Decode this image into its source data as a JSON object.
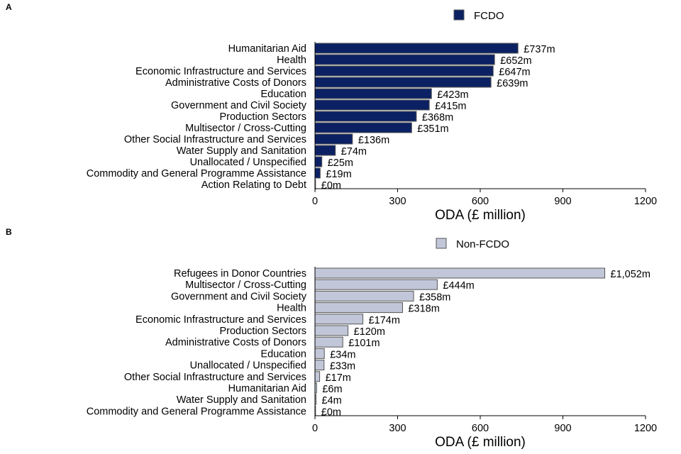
{
  "chart_data": [
    {
      "type": "bar",
      "orientation": "horizontal",
      "panel_label": "A",
      "legend": "FCDO",
      "legend_position": "top-right",
      "color": "#0b2163",
      "categories": [
        "Humanitarian Aid",
        "Health",
        "Economic Infrastructure and Services",
        "Administrative Costs of Donors",
        "Education",
        "Government and Civil Society",
        "Production Sectors",
        "Multisector / Cross-Cutting",
        "Other Social Infrastructure and Services",
        "Water Supply and Sanitation",
        "Unallocated / Unspecified",
        "Commodity and General Programme Assistance",
        "Action Relating to Debt"
      ],
      "values": [
        737,
        652,
        647,
        639,
        423,
        415,
        368,
        351,
        136,
        74,
        25,
        19,
        0
      ],
      "data_labels": [
        "£737m",
        "£652m",
        "£647m",
        "£639m",
        "£423m",
        "£415m",
        "£368m",
        "£351m",
        "£136m",
        "£74m",
        "£25m",
        "£19m",
        "£0m"
      ],
      "xlabel": "ODA (£ million)",
      "xlim": [
        0,
        1200
      ],
      "xticks": [
        "0",
        "300",
        "600",
        "900",
        "1200"
      ],
      "grid": false
    },
    {
      "type": "bar",
      "orientation": "horizontal",
      "panel_label": "B",
      "legend": "Non-FCDO",
      "legend_position": "top-right",
      "color": "#c1c7d8",
      "categories": [
        "Refugees in Donor Countries",
        "Multisector / Cross-Cutting",
        "Government and Civil Society",
        "Health",
        "Economic Infrastructure and Services",
        "Production Sectors",
        "Administrative Costs of Donors",
        "Education",
        "Unallocated / Unspecified",
        "Other Social Infrastructure and Services",
        "Humanitarian Aid",
        "Water Supply and Sanitation",
        "Commodity and General Programme Assistance"
      ],
      "values": [
        1052,
        444,
        358,
        318,
        174,
        120,
        101,
        34,
        33,
        17,
        6,
        4,
        0
      ],
      "data_labels": [
        "£1,052m",
        "£444m",
        "£358m",
        "£318m",
        "£174m",
        "£120m",
        "£101m",
        "£34m",
        "£33m",
        "£17m",
        "£6m",
        "£4m",
        "£0m"
      ],
      "xlabel": "ODA (£ million)",
      "xlim": [
        0,
        1200
      ],
      "xticks": [
        "0",
        "300",
        "600",
        "900",
        "1200"
      ],
      "grid": false
    }
  ]
}
